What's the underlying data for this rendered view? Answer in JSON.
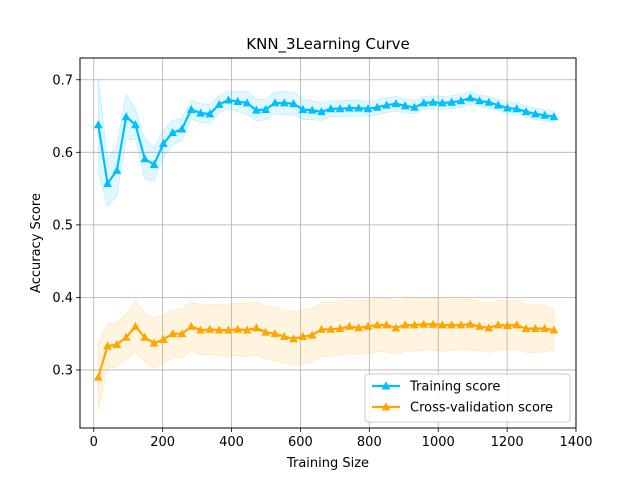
{
  "chart_data": {
    "type": "line",
    "title": "KNN_3Learning Curve",
    "xlabel": "Training Size",
    "ylabel": "Accuracy Score",
    "xlim": [
      -40,
      1400
    ],
    "ylim": [
      0.22,
      0.73
    ],
    "xticks": [
      0,
      200,
      400,
      600,
      800,
      1000,
      1200,
      1400
    ],
    "yticks": [
      0.3,
      0.4,
      0.5,
      0.6,
      0.7
    ],
    "grid": true,
    "legend_position": "lower right",
    "x": [
      13,
      40,
      67,
      94,
      121,
      148,
      175,
      202,
      229,
      256,
      283,
      310,
      337,
      364,
      391,
      418,
      445,
      472,
      499,
      526,
      553,
      580,
      607,
      634,
      661,
      688,
      715,
      742,
      769,
      796,
      823,
      850,
      877,
      904,
      931,
      958,
      985,
      1012,
      1039,
      1066,
      1093,
      1120,
      1147,
      1174,
      1201,
      1228,
      1255,
      1282,
      1309,
      1336
    ],
    "series": [
      {
        "name": "Training score",
        "color": "#00bfff",
        "marker": "triangle",
        "values": [
          0.638,
          0.557,
          0.575,
          0.649,
          0.638,
          0.591,
          0.583,
          0.612,
          0.627,
          0.632,
          0.659,
          0.654,
          0.653,
          0.666,
          0.672,
          0.67,
          0.668,
          0.658,
          0.659,
          0.668,
          0.668,
          0.667,
          0.659,
          0.658,
          0.656,
          0.66,
          0.66,
          0.661,
          0.661,
          0.66,
          0.662,
          0.665,
          0.667,
          0.664,
          0.662,
          0.668,
          0.669,
          0.668,
          0.669,
          0.671,
          0.675,
          0.671,
          0.669,
          0.665,
          0.661,
          0.66,
          0.656,
          0.653,
          0.651,
          0.649
        ],
        "band_lower": [
          0.572,
          0.525,
          0.54,
          0.618,
          0.617,
          0.563,
          0.56,
          0.593,
          0.61,
          0.617,
          0.646,
          0.641,
          0.64,
          0.654,
          0.66,
          0.656,
          0.652,
          0.643,
          0.645,
          0.653,
          0.652,
          0.651,
          0.645,
          0.645,
          0.644,
          0.649,
          0.649,
          0.65,
          0.65,
          0.65,
          0.652,
          0.655,
          0.657,
          0.654,
          0.653,
          0.659,
          0.66,
          0.659,
          0.66,
          0.662,
          0.666,
          0.663,
          0.661,
          0.657,
          0.653,
          0.652,
          0.648,
          0.645,
          0.643,
          0.641
        ],
        "band_upper": [
          0.704,
          0.59,
          0.61,
          0.68,
          0.66,
          0.619,
          0.606,
          0.631,
          0.644,
          0.647,
          0.672,
          0.667,
          0.666,
          0.678,
          0.684,
          0.684,
          0.684,
          0.673,
          0.673,
          0.683,
          0.684,
          0.683,
          0.673,
          0.671,
          0.668,
          0.671,
          0.671,
          0.672,
          0.672,
          0.67,
          0.672,
          0.675,
          0.677,
          0.674,
          0.671,
          0.677,
          0.678,
          0.677,
          0.678,
          0.68,
          0.684,
          0.679,
          0.677,
          0.673,
          0.669,
          0.668,
          0.664,
          0.661,
          0.659,
          0.657
        ]
      },
      {
        "name": "Cross-validation score",
        "color": "#ffa500",
        "marker": "triangle",
        "values": [
          0.29,
          0.333,
          0.335,
          0.345,
          0.36,
          0.345,
          0.337,
          0.342,
          0.35,
          0.35,
          0.36,
          0.355,
          0.356,
          0.355,
          0.355,
          0.356,
          0.355,
          0.358,
          0.352,
          0.35,
          0.346,
          0.343,
          0.346,
          0.348,
          0.356,
          0.356,
          0.357,
          0.36,
          0.358,
          0.36,
          0.362,
          0.362,
          0.358,
          0.362,
          0.362,
          0.363,
          0.363,
          0.362,
          0.362,
          0.362,
          0.363,
          0.36,
          0.358,
          0.362,
          0.361,
          0.362,
          0.357,
          0.357,
          0.357,
          0.355
        ],
        "band_lower": [
          0.245,
          0.302,
          0.305,
          0.313,
          0.325,
          0.311,
          0.303,
          0.308,
          0.317,
          0.316,
          0.326,
          0.321,
          0.321,
          0.32,
          0.319,
          0.32,
          0.318,
          0.321,
          0.315,
          0.313,
          0.309,
          0.306,
          0.309,
          0.311,
          0.319,
          0.319,
          0.32,
          0.323,
          0.321,
          0.323,
          0.325,
          0.325,
          0.321,
          0.326,
          0.326,
          0.327,
          0.327,
          0.326,
          0.327,
          0.327,
          0.328,
          0.326,
          0.324,
          0.328,
          0.327,
          0.328,
          0.324,
          0.324,
          0.325,
          0.327
        ],
        "band_upper": [
          0.335,
          0.364,
          0.365,
          0.377,
          0.395,
          0.379,
          0.371,
          0.376,
          0.383,
          0.384,
          0.394,
          0.389,
          0.391,
          0.39,
          0.391,
          0.392,
          0.392,
          0.395,
          0.389,
          0.387,
          0.383,
          0.38,
          0.383,
          0.385,
          0.393,
          0.393,
          0.394,
          0.397,
          0.395,
          0.397,
          0.399,
          0.399,
          0.395,
          0.398,
          0.398,
          0.399,
          0.399,
          0.398,
          0.397,
          0.397,
          0.398,
          0.394,
          0.392,
          0.396,
          0.395,
          0.396,
          0.39,
          0.39,
          0.389,
          0.383
        ]
      }
    ]
  }
}
